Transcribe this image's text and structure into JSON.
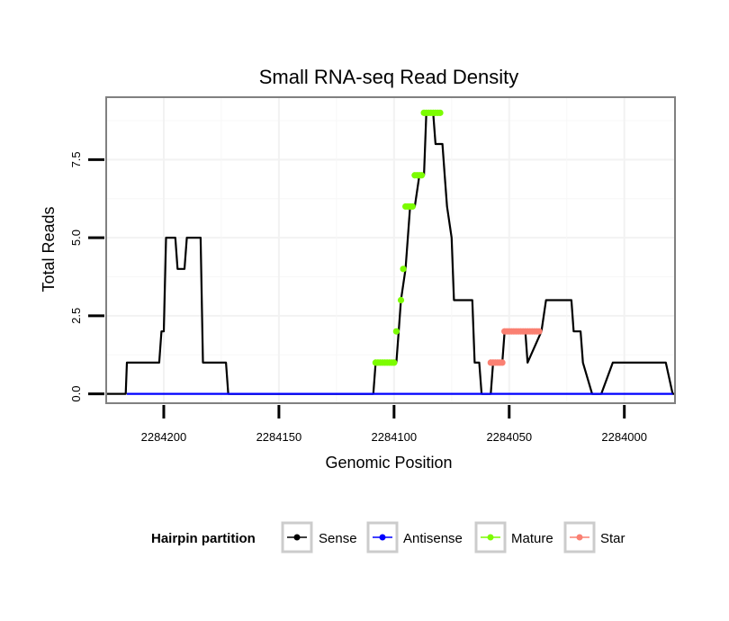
{
  "chart_data": {
    "type": "line",
    "title": "Small RNA-seq Read Density",
    "xlabel": "Genomic Position",
    "ylabel": "Total Reads",
    "xlim": [
      2284225,
      2283978
    ],
    "ylim": [
      -0.3,
      9.5
    ],
    "x_ticks": [
      2284200,
      2284150,
      2284100,
      2284050,
      2284000
    ],
    "x_tick_labels": [
      "2284200",
      "2284150",
      "2284100",
      "2284050",
      "2284000"
    ],
    "y_ticks": [
      0,
      2.5,
      5,
      7.5
    ],
    "y_tick_labels": [
      "0.0",
      "2.5",
      "5.0",
      "7.5"
    ],
    "grid": true,
    "legend": {
      "title": "Hairpin partition",
      "position": "bottom",
      "entries": [
        {
          "name": "Sense",
          "color": "#000000"
        },
        {
          "name": "Antisense",
          "color": "#0000ff"
        },
        {
          "name": "Mature",
          "color": "#7cfc00"
        },
        {
          "name": "Star",
          "color": "#fa8072"
        }
      ]
    },
    "series": [
      {
        "name": "Sense",
        "color": "#000000",
        "x": [
          2284225,
          2284216.5,
          2284216,
          2284202,
          2284201,
          2284200,
          2284199,
          2284195,
          2284194,
          2284191,
          2284190,
          2284184,
          2284183,
          2284173,
          2284172,
          2284109,
          2284108,
          2284099,
          2284098,
          2284097,
          2284095,
          2284093,
          2284091,
          2284089,
          2284087,
          2284086,
          2284083,
          2284082,
          2284079,
          2284078,
          2284077,
          2284075,
          2284074,
          2284066,
          2284065,
          2284063,
          2284062,
          2284058,
          2284057,
          2284053,
          2284052,
          2284049,
          2284047,
          2284043,
          2284042,
          2284036,
          2284034,
          2284023,
          2284022,
          2284019,
          2284018,
          2284014,
          2284013,
          2284010,
          2284005,
          2284004,
          2284002,
          2283996,
          2283992,
          2283986,
          2283982,
          2283979,
          2283978
        ],
        "y": [
          0,
          0,
          1,
          1,
          2,
          2,
          5,
          5,
          4,
          4,
          5,
          5,
          1,
          1,
          0,
          0,
          1,
          1,
          2,
          3,
          4,
          6,
          6,
          7,
          7,
          9,
          9,
          8,
          8,
          7,
          6,
          5,
          3,
          3,
          1,
          1,
          0,
          0,
          1,
          1,
          2,
          2,
          2,
          2,
          1,
          2,
          3,
          3,
          2,
          2,
          1,
          0,
          0,
          0,
          1,
          1,
          1,
          1,
          1,
          1,
          1,
          0,
          0
        ]
      },
      {
        "name": "Antisense",
        "color": "#0000ff",
        "x": [
          2284216,
          2283979
        ],
        "y": [
          0,
          0
        ]
      },
      {
        "name": "Mature",
        "color": "#7cfc00",
        "x": [
          2284108,
          2284107,
          2284106,
          2284105,
          2284104,
          2284103,
          2284102,
          2284101,
          2284100,
          2284099,
          2284097,
          2284096,
          2284095,
          2284094,
          2284093,
          2284092,
          2284091,
          2284090,
          2284089,
          2284088,
          2284087,
          2284086,
          2284085,
          2284084,
          2284083,
          2284082,
          2284081,
          2284080
        ],
        "y": [
          1,
          1,
          1,
          1,
          1,
          1,
          1,
          1,
          1,
          2,
          3,
          4,
          6,
          6,
          6,
          6,
          7,
          7,
          7,
          7,
          9,
          9,
          9,
          9,
          9,
          9,
          9,
          9
        ]
      },
      {
        "name": "Star",
        "color": "#fa8072",
        "x": [
          2284058,
          2284057,
          2284056,
          2284055,
          2284054,
          2284053,
          2284052,
          2284051,
          2284050,
          2284049,
          2284048,
          2284047,
          2284046,
          2284045,
          2284044,
          2284043,
          2284042,
          2284041,
          2284040,
          2284039,
          2284038,
          2284037
        ],
        "y": [
          1,
          1,
          1,
          1,
          1,
          1,
          2,
          2,
          2,
          2,
          2,
          2,
          2,
          2,
          2,
          2,
          2,
          2,
          2,
          2,
          2,
          2
        ]
      }
    ]
  }
}
